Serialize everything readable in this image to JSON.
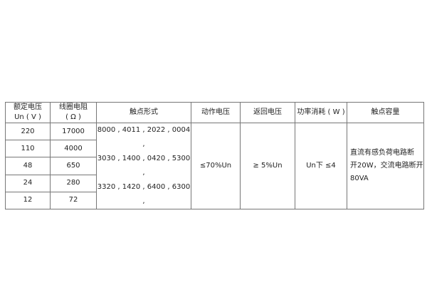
{
  "headers": {
    "rated_voltage": [
      "额定电压",
      "Un ( V )"
    ],
    "coil_resistance": [
      "线圈电阻",
      "( Ω )"
    ],
    "contact_form": "触点形式",
    "operate_voltage": "动作电压",
    "release_voltage": "返回电压",
    "power_consumption": "功率消耗 ( W )",
    "contact_capacity": "触点容量"
  },
  "rows": [
    {
      "voltage": "220",
      "resistance": "17000"
    },
    {
      "voltage": "110",
      "resistance": "4000"
    },
    {
      "voltage": "48",
      "resistance": "650"
    },
    {
      "voltage": "24",
      "resistance": "280"
    },
    {
      "voltage": "12",
      "resistance": "72"
    }
  ],
  "contact_form_lines": [
    "8000 , 4011 , 2022 , 0004 ,",
    "3030 , 1400 , 0420 , 5300 ,",
    "3320 , 1420 , 6400 , 6300 ,"
  ],
  "operate_voltage": "≤70%Un",
  "release_voltage": "≥  5%Un",
  "power_consumption": "Un下  ≤4",
  "contact_capacity_lines": [
    "直流有感负荷电路断",
    "开20W，交流电路断开",
    "80VA"
  ]
}
